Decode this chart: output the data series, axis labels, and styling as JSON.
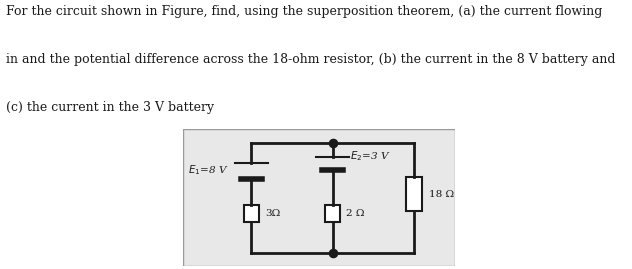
{
  "title_line1": "For the circuit shown in Figure, find, using the superposition theorem, (a) the current flowing",
  "title_line2": "in and the potential difference across the 18-ohm resistor, (b) the current in the 8 V battery and",
  "title_line3": "(c) the current in the 3 V battery",
  "title_fontsize": 9.0,
  "fig_width": 6.32,
  "fig_height": 2.69,
  "bg_color": "#e8e8e8",
  "wire_color": "#1a1a1a",
  "text_color": "#1a1a1a",
  "E1_label": "$E_1$=8 V",
  "E2_label": "$E_2$=3 V",
  "R1_label": "3Ω",
  "R2_label": "2 Ω",
  "R3_label": "18 Ω"
}
